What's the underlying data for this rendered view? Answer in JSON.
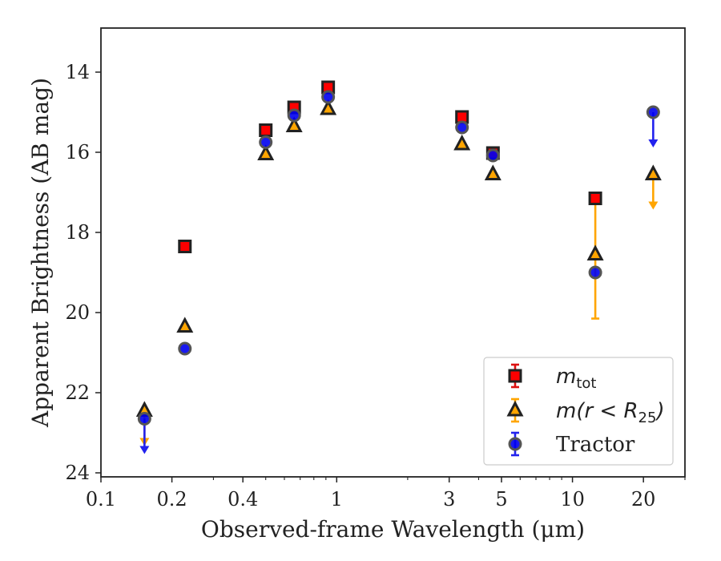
{
  "chart_data": {
    "type": "scatter",
    "xlabel": "Observed-frame Wavelength (μm)",
    "ylabel": "Apparent Brightness (AB mag)",
    "xscale": "log",
    "xlim": [
      0.1,
      30
    ],
    "ylim": [
      24.1,
      12.9
    ],
    "y_inverted": true,
    "grid": false,
    "legend_position": "lower right",
    "x_ticks": [
      0.1,
      0.2,
      0.4,
      1,
      3,
      5,
      10,
      20
    ],
    "x_tick_labels": [
      "0.1",
      "0.2",
      "0.4",
      "1",
      "3",
      "5",
      "10",
      "20"
    ],
    "y_ticks": [
      14,
      16,
      18,
      20,
      22,
      24
    ],
    "y_tick_labels": [
      "14",
      "16",
      "18",
      "20",
      "22",
      "24"
    ],
    "series": [
      {
        "name": "m_tot",
        "legend_label": "m",
        "legend_subscript": "tot",
        "marker": "square",
        "face_color": "#ff0000",
        "edge_color": "#222222",
        "error_color": "#dd1111",
        "points": [
          {
            "x": 0.227,
            "y": 18.35
          },
          {
            "x": 0.5,
            "y": 15.45
          },
          {
            "x": 0.66,
            "y": 14.88
          },
          {
            "x": 0.92,
            "y": 14.38
          },
          {
            "x": 3.4,
            "y": 15.12
          },
          {
            "x": 4.6,
            "y": 16.02
          },
          {
            "x": 12.5,
            "y": 17.15
          }
        ]
      },
      {
        "name": "m(r < R_25)",
        "legend_label": "m(r < R",
        "legend_subscript": "25",
        "legend_suffix": ")",
        "marker": "triangle",
        "face_color": "#ffa500",
        "edge_color": "#222222",
        "error_color": "#ffa500",
        "points": [
          {
            "x": 0.153,
            "y": 22.45,
            "upper_limit": true
          },
          {
            "x": 0.227,
            "y": 20.35
          },
          {
            "x": 0.5,
            "y": 16.05
          },
          {
            "x": 0.66,
            "y": 15.35
          },
          {
            "x": 0.92,
            "y": 14.92
          },
          {
            "x": 3.4,
            "y": 15.8
          },
          {
            "x": 4.6,
            "y": 16.55
          },
          {
            "x": 12.5,
            "y": 18.55,
            "yerr_low": 19.6,
            "yerr_high": 20.15
          },
          {
            "x": 22.0,
            "y": 16.55,
            "upper_limit": true
          }
        ]
      },
      {
        "name": "Tractor",
        "legend_label": "Tractor",
        "marker": "circle",
        "face_color": "#0000ee",
        "edge_color": "#555555",
        "error_color": "#2222ee",
        "points": [
          {
            "x": 0.153,
            "y": 22.65,
            "upper_limit": true
          },
          {
            "x": 0.227,
            "y": 20.9
          },
          {
            "x": 0.5,
            "y": 15.75
          },
          {
            "x": 0.66,
            "y": 15.08
          },
          {
            "x": 0.92,
            "y": 14.62
          },
          {
            "x": 3.4,
            "y": 15.38
          },
          {
            "x": 4.6,
            "y": 16.08
          },
          {
            "x": 12.5,
            "y": 19.0
          },
          {
            "x": 22.0,
            "y": 15.0,
            "upper_limit": true
          }
        ]
      }
    ]
  }
}
